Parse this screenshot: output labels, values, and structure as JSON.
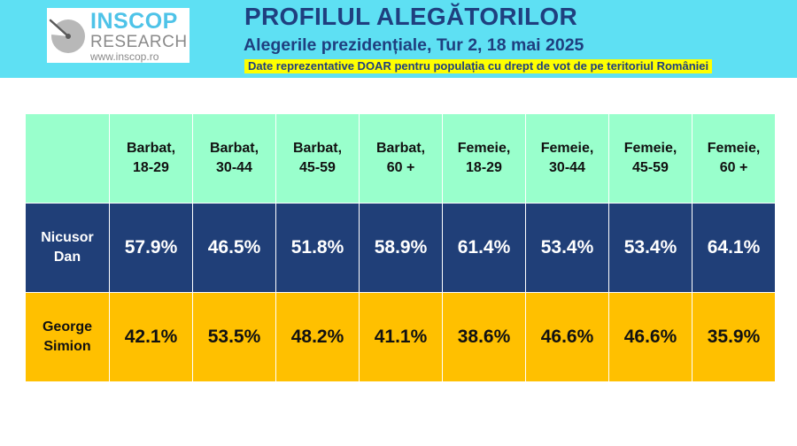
{
  "logo": {
    "word1": "INSCOP",
    "word2": "RESEARCH",
    "url": "www.inscop.ro"
  },
  "header": {
    "title": "PROFILUL ALEGĂTORILOR",
    "subtitle": "Alegerile prezidențiale, Tur 2, 18 mai 2025",
    "note": "Date reprezentative DOAR pentru populația cu drept de vot de pe teritoriul României"
  },
  "colors": {
    "header_bg": "#5ee0f3",
    "title_text": "#1f3f7f",
    "note_highlight": "#ffff00",
    "table_header_bg": "#99ffcc",
    "nicusor_dan_row": "#203f78",
    "george_simion_row": "#ffc000"
  },
  "chart_data": {
    "type": "table",
    "columns": [
      {
        "line1": "Barbat,",
        "line2": "18-29"
      },
      {
        "line1": "Barbat,",
        "line2": "30-44"
      },
      {
        "line1": "Barbat,",
        "line2": "45-59"
      },
      {
        "line1": "Barbat,",
        "line2": "60 +"
      },
      {
        "line1": "Femeie,",
        "line2": "18-29"
      },
      {
        "line1": "Femeie,",
        "line2": "30-44"
      },
      {
        "line1": "Femeie,",
        "line2": "45-59"
      },
      {
        "line1": "Femeie,",
        "line2": "60 +"
      }
    ],
    "rows": [
      {
        "name_line1": "Nicusor",
        "name_line2": "Dan",
        "values": [
          "57.9%",
          "46.5%",
          "51.8%",
          "58.9%",
          "61.4%",
          "53.4%",
          "53.4%",
          "64.1%"
        ]
      },
      {
        "name_line1": "George",
        "name_line2": "Simion",
        "values": [
          "42.1%",
          "53.5%",
          "48.2%",
          "41.1%",
          "38.6%",
          "46.6%",
          "46.6%",
          "35.9%"
        ]
      }
    ]
  }
}
